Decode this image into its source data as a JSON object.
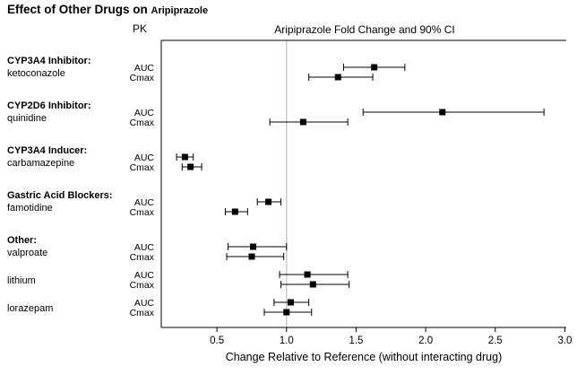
{
  "title": {
    "main": "Effect of Other Drugs on",
    "drug": "Aripiprazole"
  },
  "headers": {
    "pk": "PK",
    "plot": "Aripiprazole Fold Change and 90% CI"
  },
  "chart_data": {
    "type": "forest",
    "title": "Effect of Other Drugs on Aripiprazole",
    "subtitle": "Aripiprazole Fold Change and 90% CI",
    "xlabel": "Change Relative to Reference (without interacting drug)",
    "x_ticks": [
      0.5,
      1.0,
      1.5,
      2.0,
      2.5,
      3.0
    ],
    "x_range": [
      0.1,
      3.01
    ],
    "reference_line": 1.0,
    "ci_level": "90% CI",
    "pk_row_labels": [
      "AUC",
      "Cmax"
    ],
    "marker_color": "#000000",
    "reference_line_color": "#c4c4c4",
    "groups": [
      {
        "label": "CYP3A4 Inhibitor:",
        "drugs": [
          {
            "name": "ketoconazole",
            "auc": {
              "est": 1.63,
              "lo": 1.41,
              "hi": 1.85
            },
            "cmax": {
              "est": 1.37,
              "lo": 1.16,
              "hi": 1.62
            }
          }
        ]
      },
      {
        "label": "CYP2D6 Inhibitor:",
        "drugs": [
          {
            "name": "quinidine",
            "auc": {
              "est": 2.12,
              "lo": 1.55,
              "hi": 2.85
            },
            "cmax": {
              "est": 1.12,
              "lo": 0.88,
              "hi": 1.44
            }
          }
        ]
      },
      {
        "label": "CYP3A4 Inducer:",
        "drugs": [
          {
            "name": "carbamazepine",
            "auc": {
              "est": 0.27,
              "lo": 0.21,
              "hi": 0.33
            },
            "cmax": {
              "est": 0.31,
              "lo": 0.25,
              "hi": 0.39
            }
          }
        ]
      },
      {
        "label": "Gastric Acid Blockers:",
        "drugs": [
          {
            "name": "famotidine",
            "auc": {
              "est": 0.87,
              "lo": 0.79,
              "hi": 0.96
            },
            "cmax": {
              "est": 0.63,
              "lo": 0.56,
              "hi": 0.72
            }
          }
        ]
      },
      {
        "label": "Other:",
        "drugs": [
          {
            "name": "valproate",
            "auc": {
              "est": 0.76,
              "lo": 0.58,
              "hi": 1.0
            },
            "cmax": {
              "est": 0.75,
              "lo": 0.57,
              "hi": 0.98
            }
          },
          {
            "name": "lithium",
            "auc": {
              "est": 1.15,
              "lo": 0.95,
              "hi": 1.44
            },
            "cmax": {
              "est": 1.19,
              "lo": 0.96,
              "hi": 1.45
            }
          },
          {
            "name": "lorazepam",
            "auc": {
              "est": 1.03,
              "lo": 0.91,
              "hi": 1.16
            },
            "cmax": {
              "est": 1.0,
              "lo": 0.84,
              "hi": 1.18
            }
          }
        ]
      }
    ]
  }
}
